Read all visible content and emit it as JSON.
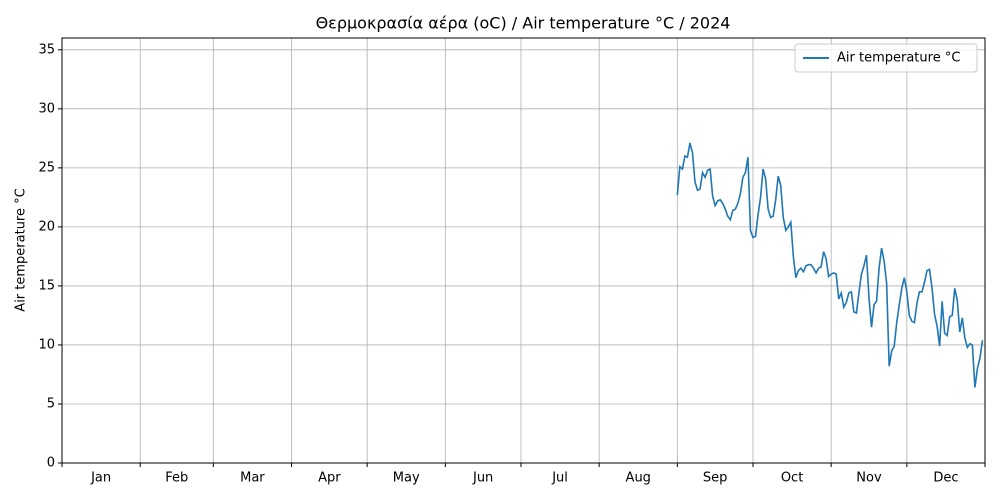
{
  "chart_data": {
    "type": "line",
    "title": "Θερμοκρασία αέρα (oC) / Air temperature °C / 2024",
    "ylabel": "Air temperature °C",
    "x": [
      244,
      245,
      246,
      247,
      248,
      249,
      250,
      251,
      252,
      253,
      254,
      255,
      256,
      257,
      258,
      259,
      260,
      261,
      262,
      263,
      264,
      265,
      266,
      267,
      268,
      269,
      270,
      271,
      272,
      273,
      274,
      275,
      276,
      277,
      278,
      279,
      280,
      281,
      282,
      283,
      284,
      285,
      286,
      287,
      288,
      289,
      290,
      291,
      292,
      293,
      294,
      295,
      296,
      297,
      298,
      299,
      300,
      301,
      302,
      303,
      304,
      305,
      306,
      307,
      308,
      309,
      310,
      311,
      312,
      313,
      314,
      315,
      316,
      317,
      318,
      319,
      320,
      321,
      322,
      323,
      324,
      325,
      326,
      327,
      328,
      329,
      330,
      331,
      332,
      333,
      334,
      335,
      336,
      337,
      338,
      339,
      340,
      341,
      342,
      343,
      344,
      345,
      346,
      347,
      348,
      349,
      350,
      351,
      352,
      353,
      354,
      355,
      356,
      357,
      358,
      359,
      360,
      361,
      362,
      363,
      364,
      365
    ],
    "series": [
      {
        "name": "Air temperature °C",
        "color": "#1f77b4",
        "values": [
          22.7,
          25.1,
          24.9,
          26.0,
          25.9,
          27.1,
          26.3,
          23.8,
          23.1,
          23.2,
          24.6,
          24.2,
          24.8,
          24.9,
          22.6,
          21.8,
          22.2,
          22.3,
          22.0,
          21.5,
          20.9,
          20.6,
          21.4,
          21.5,
          22.0,
          22.8,
          24.2,
          24.6,
          25.9,
          19.7,
          19.1,
          19.2,
          21.0,
          22.5,
          24.9,
          24.1,
          21.5,
          20.8,
          20.9,
          22.3,
          24.3,
          23.5,
          20.8,
          19.7,
          20.0,
          20.4,
          17.5,
          15.7,
          16.3,
          16.5,
          16.2,
          16.7,
          16.8,
          16.8,
          16.5,
          16.1,
          16.5,
          16.6,
          17.9,
          17.3,
          15.8,
          16.0,
          16.1,
          16.0,
          13.9,
          14.4,
          13.2,
          13.6,
          14.4,
          14.5,
          12.8,
          12.7,
          14.4,
          16.0,
          16.7,
          17.6,
          14.0,
          11.5,
          13.4,
          13.7,
          16.5,
          18.2,
          17.1,
          15.2,
          8.2,
          9.5,
          9.9,
          11.9,
          13.4,
          14.8,
          15.7,
          14.5,
          12.5,
          12.0,
          11.9,
          13.5,
          14.5,
          14.5,
          15.3,
          16.3,
          16.4,
          14.8,
          12.6,
          11.6,
          9.9,
          13.7,
          11.0,
          10.8,
          12.4,
          12.5,
          14.8,
          13.8,
          11.1,
          12.3,
          10.6,
          9.8,
          10.1,
          10.0,
          6.4,
          8.0,
          8.9,
          10.4
        ]
      }
    ],
    "xlim": [
      0,
      366
    ],
    "xticks": [
      {
        "value": 15.5,
        "label": "Jan"
      },
      {
        "value": 45.5,
        "label": "Feb"
      },
      {
        "value": 75.5,
        "label": "Mar"
      },
      {
        "value": 106,
        "label": "Apr"
      },
      {
        "value": 136.5,
        "label": "May"
      },
      {
        "value": 167,
        "label": "Jun"
      },
      {
        "value": 197.5,
        "label": "Jul"
      },
      {
        "value": 228.5,
        "label": "Aug"
      },
      {
        "value": 259,
        "label": "Sep"
      },
      {
        "value": 289.5,
        "label": "Oct"
      },
      {
        "value": 320,
        "label": "Nov"
      },
      {
        "value": 350.5,
        "label": "Dec"
      }
    ],
    "xgrid": [
      0,
      31,
      60,
      91,
      121,
      152,
      182,
      213,
      244,
      274,
      305,
      335,
      366
    ],
    "ylim": [
      0,
      36
    ],
    "yticks": [
      0,
      5,
      10,
      15,
      20,
      25,
      30,
      35
    ],
    "grid": true,
    "legend": "upper right"
  }
}
